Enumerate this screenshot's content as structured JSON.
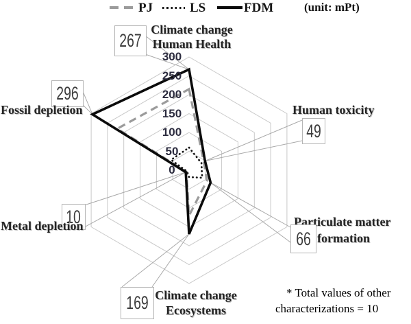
{
  "legend": {
    "items": [
      {
        "label": "PJ"
      },
      {
        "label": "LS"
      },
      {
        "label": "FDM"
      }
    ],
    "unit": "(unit: mPt)"
  },
  "colors": {
    "pj": "#9b9b9b",
    "ls": "#141414",
    "fdm": "#0b0b0b",
    "grid": "#c9c9c9",
    "leader": "#a9a9a9",
    "box_border": "#b4b4b4"
  },
  "chart_data": {
    "type": "radar",
    "title": "",
    "unit": "mPt",
    "categories": [
      "Climate change Human Health",
      "Human toxicity",
      "Particulate matter formation",
      "Climate change Ecosystems",
      "Metal depletion",
      "Fossil depletion"
    ],
    "series": [
      {
        "name": "PJ",
        "style": "dashed-gray",
        "values": [
          215,
          45,
          55,
          120,
          8,
          220
        ]
      },
      {
        "name": "LS",
        "style": "dotted-black",
        "values": [
          60,
          38,
          40,
          18,
          6,
          55
        ]
      },
      {
        "name": "FDM",
        "style": "solid-black",
        "values": [
          267,
          49,
          66,
          169,
          10,
          296
        ]
      }
    ],
    "labeled_series": "FDM",
    "radial_ticks": [
      0,
      50,
      100,
      150,
      200,
      250,
      300
    ],
    "rmax": 300,
    "grid": "hexagonal",
    "legend_position": "top"
  },
  "callouts": [
    {
      "value": "267",
      "label_lines": [
        "Climate change",
        "Human Health"
      ]
    },
    {
      "value": "49",
      "label_lines": [
        "Human toxicity",
        ""
      ]
    },
    {
      "value": "66",
      "label_lines": [
        "Particulate matter",
        "formation"
      ]
    },
    {
      "value": "169",
      "label_lines": [
        "Climate change",
        "Ecosystems"
      ]
    },
    {
      "value": "10",
      "label_lines": [
        "Metal depletion",
        ""
      ]
    },
    {
      "value": "296",
      "label_lines": [
        "Fossil depletion",
        ""
      ]
    }
  ],
  "note": {
    "line1": "* Total values of other",
    "line2": "characterizations = 10"
  }
}
